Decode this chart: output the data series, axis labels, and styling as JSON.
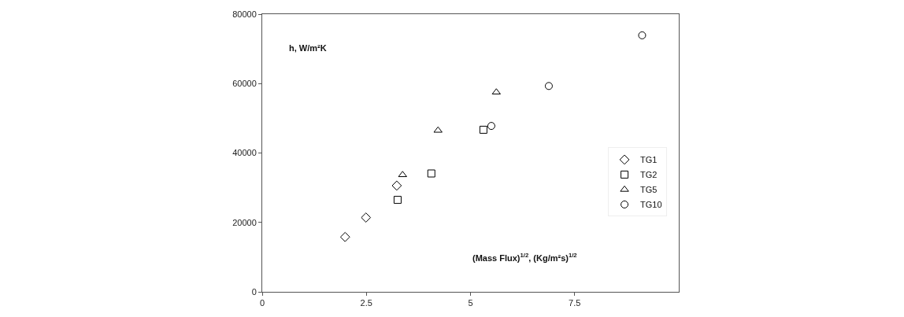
{
  "chart_data": {
    "type": "scatter",
    "xlabel": "(Mass Flux)$^{1/2}$, (Kg/m²s)$^{1/2}$",
    "ylabel": "h, W/m²K",
    "xlim": [
      0,
      10
    ],
    "xticks": [
      0,
      2.5,
      5,
      7.5
    ],
    "ylim": [
      0,
      80000
    ],
    "yticks": [
      0,
      20000,
      40000,
      60000,
      80000
    ],
    "legend": "right",
    "series": [
      {
        "name": "TG1",
        "color": "#000000",
        "marker": "diamond",
        "x": [
          1.99,
          2.49,
          3.23
        ],
        "values": [
          15800,
          21400,
          30600
        ]
      },
      {
        "name": "TG2",
        "color": "#000000",
        "marker": "square",
        "x": [
          3.25,
          4.06,
          5.31
        ],
        "values": [
          26500,
          34100,
          46700
        ]
      },
      {
        "name": "TG5",
        "color": "#000000",
        "marker": "triangle",
        "x": [
          3.37,
          4.22,
          5.62
        ],
        "values": [
          33700,
          46500,
          57500
        ]
      },
      {
        "name": "TG10",
        "color": "#000000",
        "marker": "circle",
        "x": [
          5.5,
          6.88,
          9.12
        ],
        "values": [
          47800,
          59300,
          73900
        ]
      }
    ]
  }
}
